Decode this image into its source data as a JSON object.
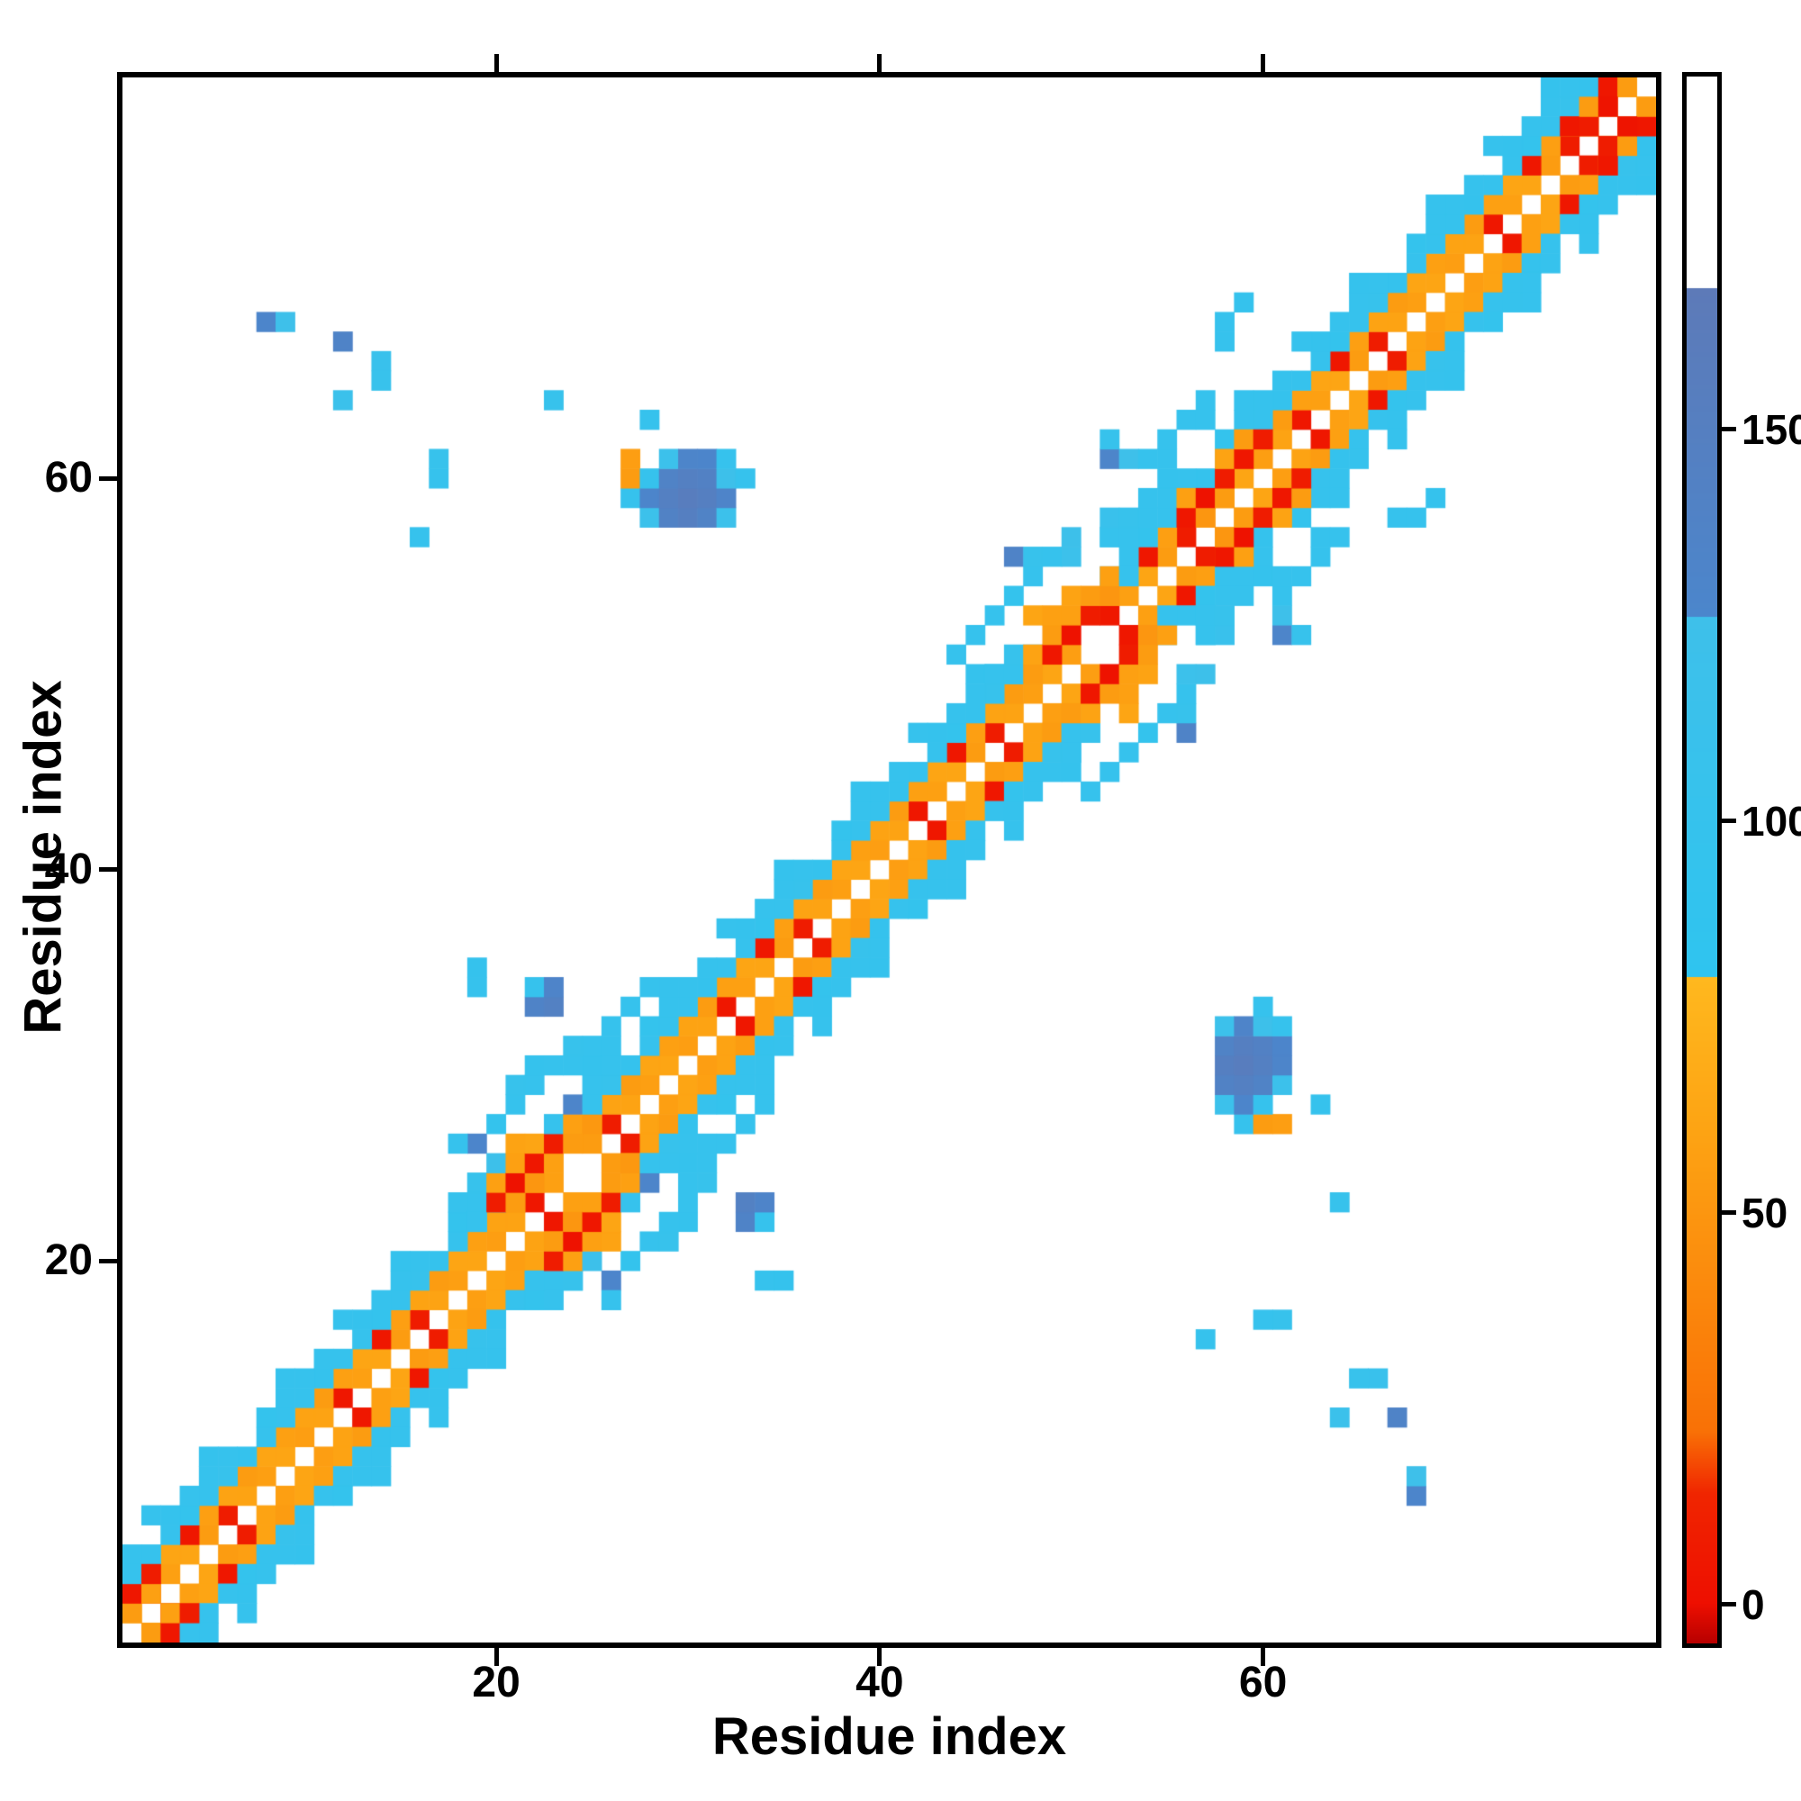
{
  "chart_data": {
    "type": "heatmap",
    "title": "",
    "xlabel": "Residue index",
    "ylabel": "Residue index",
    "n_residues": 80,
    "x_range": [
      1,
      80
    ],
    "y_range": [
      1,
      80
    ],
    "x_ticks": [
      20,
      40,
      60
    ],
    "y_ticks": [
      20,
      40,
      60
    ],
    "grid": false,
    "symmetric": true,
    "background_value_color": "#ffffff",
    "colorbar": {
      "position": "right",
      "vmin": -5,
      "vmax": 195,
      "ticks": [
        0,
        50,
        100,
        150
      ],
      "stops": [
        [
          -5,
          "#b80000"
        ],
        [
          0,
          "#ee0f00"
        ],
        [
          14,
          "#f02500"
        ],
        [
          22,
          "#f97106"
        ],
        [
          60,
          "#fda313"
        ],
        [
          80,
          "#ffb81e"
        ],
        [
          80.01,
          "#2fc4ef"
        ],
        [
          126,
          "#3ec0ea"
        ],
        [
          126.01,
          "#4b86cc"
        ],
        [
          168,
          "#5d7ab8"
        ],
        [
          168.01,
          "#ffffff"
        ],
        [
          195,
          "#ffffff"
        ]
      ]
    },
    "band_segments": [
      [
        1,
        24
      ],
      [
        25,
        51
      ],
      [
        52,
        80
      ]
    ],
    "band_offsets": {
      "1": [
        56,
        60,
        5,
        58,
        62,
        55,
        8,
        60,
        57,
        62
      ],
      "2": [
        60,
        55,
        58,
        62,
        5,
        57,
        60,
        55,
        62,
        58
      ],
      "3": [
        100,
        98,
        102,
        100,
        96,
        100,
        104,
        98,
        100,
        102
      ],
      "4": [
        100,
        102,
        null,
        98,
        100,
        102,
        100,
        null,
        96,
        100
      ],
      "5": [
        null,
        null,
        102,
        null,
        null,
        98,
        null,
        null,
        null,
        100
      ]
    },
    "cells": [
      [
        1,
        2,
        55
      ],
      [
        1,
        3,
        5
      ],
      [
        1,
        4,
        100
      ],
      [
        2,
        3,
        58
      ],
      [
        2,
        4,
        8
      ],
      [
        18,
        23,
        100
      ],
      [
        19,
        22,
        100
      ],
      [
        19,
        24,
        104
      ],
      [
        19,
        26,
        128
      ],
      [
        18,
        26,
        100
      ],
      [
        20,
        23,
        8
      ],
      [
        20,
        24,
        58
      ],
      [
        20,
        25,
        122
      ],
      [
        20,
        27,
        96
      ],
      [
        21,
        23,
        55
      ],
      [
        21,
        24,
        2
      ],
      [
        21,
        25,
        58
      ],
      [
        21,
        26,
        60
      ],
      [
        21,
        28,
        100
      ],
      [
        21,
        29,
        104
      ],
      [
        22,
        24,
        50
      ],
      [
        22,
        25,
        5
      ],
      [
        22,
        26,
        62
      ],
      [
        22,
        29,
        100
      ],
      [
        22,
        30,
        98
      ],
      [
        22,
        33,
        136
      ],
      [
        22,
        34,
        102
      ],
      [
        23,
        25,
        58
      ],
      [
        23,
        26,
        8
      ],
      [
        23,
        27,
        100
      ],
      [
        23,
        30,
        102
      ],
      [
        23,
        33,
        144
      ],
      [
        23,
        34,
        132
      ],
      [
        24,
        26,
        55
      ],
      [
        24,
        27,
        58
      ],
      [
        24,
        28,
        130
      ],
      [
        24,
        30,
        100
      ],
      [
        24,
        31,
        104
      ],
      [
        25,
        27,
        52
      ],
      [
        25,
        28,
        100
      ],
      [
        25,
        31,
        100
      ],
      [
        26,
        31,
        100
      ],
      [
        26,
        32,
        102
      ],
      [
        27,
        33,
        100
      ],
      [
        28,
        34,
        100
      ],
      [
        19,
        34,
        100
      ],
      [
        19,
        35,
        98
      ],
      [
        27,
        59,
        100
      ],
      [
        27,
        60,
        55
      ],
      [
        27,
        61,
        56
      ],
      [
        28,
        58,
        120
      ],
      [
        28,
        59,
        128
      ],
      [
        28,
        60,
        100
      ],
      [
        29,
        58,
        140
      ],
      [
        29,
        59,
        148
      ],
      [
        29,
        60,
        138
      ],
      [
        29,
        61,
        120
      ],
      [
        30,
        58,
        150
      ],
      [
        30,
        59,
        156
      ],
      [
        30,
        60,
        146
      ],
      [
        30,
        61,
        130
      ],
      [
        31,
        58,
        138
      ],
      [
        31,
        59,
        150
      ],
      [
        31,
        60,
        142
      ],
      [
        31,
        61,
        128
      ],
      [
        32,
        58,
        120
      ],
      [
        32,
        59,
        132
      ],
      [
        32,
        60,
        124
      ],
      [
        32,
        61,
        100
      ],
      [
        33,
        60,
        100
      ],
      [
        28,
        63,
        100
      ],
      [
        23,
        64,
        104
      ],
      [
        44,
        51,
        100
      ],
      [
        45,
        52,
        102
      ],
      [
        46,
        50,
        100
      ],
      [
        46,
        53,
        100
      ],
      [
        47,
        50,
        100
      ],
      [
        47,
        51,
        104
      ],
      [
        47,
        54,
        96
      ],
      [
        47,
        56,
        136
      ],
      [
        48,
        50,
        55
      ],
      [
        48,
        51,
        60
      ],
      [
        48,
        53,
        62
      ],
      [
        48,
        55,
        100
      ],
      [
        48,
        56,
        104
      ],
      [
        49,
        51,
        5
      ],
      [
        49,
        52,
        55
      ],
      [
        49,
        53,
        58
      ],
      [
        49,
        56,
        100
      ],
      [
        50,
        52,
        2
      ],
      [
        50,
        53,
        58
      ],
      [
        50,
        54,
        60
      ],
      [
        50,
        56,
        120
      ],
      [
        50,
        57,
        124
      ],
      [
        51,
        53,
        8
      ],
      [
        51,
        54,
        55
      ],
      [
        52,
        54,
        50
      ],
      [
        52,
        55,
        58
      ],
      [
        52,
        57,
        100
      ],
      [
        52,
        58,
        110
      ],
      [
        52,
        61,
        130
      ],
      [
        52,
        62,
        106
      ],
      [
        53,
        55,
        100
      ],
      [
        53,
        57,
        102
      ],
      [
        53,
        58,
        104
      ],
      [
        53,
        61,
        126
      ],
      [
        54,
        59,
        100
      ],
      [
        54,
        61,
        100
      ],
      [
        55,
        61,
        102
      ],
      [
        55,
        62,
        100
      ],
      [
        56,
        58,
        5
      ],
      [
        56,
        59,
        58
      ],
      [
        56,
        63,
        100
      ],
      [
        57,
        58,
        50
      ],
      [
        57,
        59,
        2
      ],
      [
        57,
        63,
        102
      ],
      [
        57,
        64,
        100
      ],
      [
        58,
        59,
        55
      ],
      [
        58,
        60,
        8
      ],
      [
        58,
        61,
        60
      ],
      [
        58,
        67,
        100
      ],
      [
        58,
        68,
        100
      ],
      [
        59,
        61,
        5
      ],
      [
        59,
        62,
        55
      ],
      [
        59,
        69,
        98
      ],
      [
        60,
        62,
        8
      ],
      [
        8,
        68,
        128
      ],
      [
        9,
        68,
        126
      ],
      [
        12,
        67,
        136
      ],
      [
        12,
        64,
        118
      ],
      [
        14,
        66,
        110
      ],
      [
        14,
        65,
        108
      ],
      [
        17,
        61,
        104
      ],
      [
        17,
        60,
        100
      ],
      [
        16,
        57,
        100
      ],
      [
        76,
        78,
        5
      ],
      [
        77,
        78,
        8
      ],
      [
        77,
        79,
        55
      ],
      [
        78,
        80,
        5
      ],
      [
        79,
        80,
        55
      ],
      [
        78,
        79,
        3
      ]
    ]
  }
}
